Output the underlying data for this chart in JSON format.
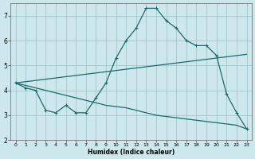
{
  "xlabel": "Humidex (Indice chaleur)",
  "background_color": "#cce8ec",
  "grid_color": "#9bbfc4",
  "line_color": "#1a6b6b",
  "xlim": [
    -0.5,
    23.5
  ],
  "ylim": [
    2,
    7.5
  ],
  "xticks": [
    0,
    1,
    2,
    3,
    4,
    5,
    6,
    7,
    8,
    9,
    10,
    11,
    12,
    13,
    14,
    15,
    16,
    17,
    18,
    19,
    20,
    21,
    22,
    23
  ],
  "yticks": [
    2,
    3,
    4,
    5,
    6,
    7
  ],
  "x": [
    0,
    1,
    2,
    3,
    4,
    5,
    6,
    7,
    8,
    9,
    10,
    11,
    12,
    13,
    14,
    15,
    16,
    17,
    18,
    19,
    20,
    21,
    22,
    23
  ],
  "line1": [
    4.3,
    4.1,
    4.0,
    3.2,
    3.1,
    3.4,
    3.1,
    3.1,
    3.7,
    4.3,
    5.3,
    6.0,
    6.5,
    7.3,
    7.3,
    6.8,
    6.5,
    6.0,
    5.8,
    5.8,
    5.4,
    3.85,
    3.1,
    2.45
  ],
  "line2": [
    4.3,
    4.35,
    4.4,
    4.45,
    4.5,
    4.55,
    4.6,
    4.65,
    4.7,
    4.75,
    4.8,
    4.85,
    4.9,
    4.95,
    5.0,
    5.05,
    5.1,
    5.15,
    5.2,
    5.25,
    5.3,
    5.35,
    5.4,
    5.45
  ],
  "line3": [
    4.3,
    4.2,
    4.1,
    4.0,
    3.9,
    3.8,
    3.7,
    3.6,
    3.5,
    3.4,
    3.35,
    3.3,
    3.2,
    3.1,
    3.0,
    2.95,
    2.9,
    2.85,
    2.8,
    2.75,
    2.7,
    2.65,
    2.6,
    2.45
  ]
}
